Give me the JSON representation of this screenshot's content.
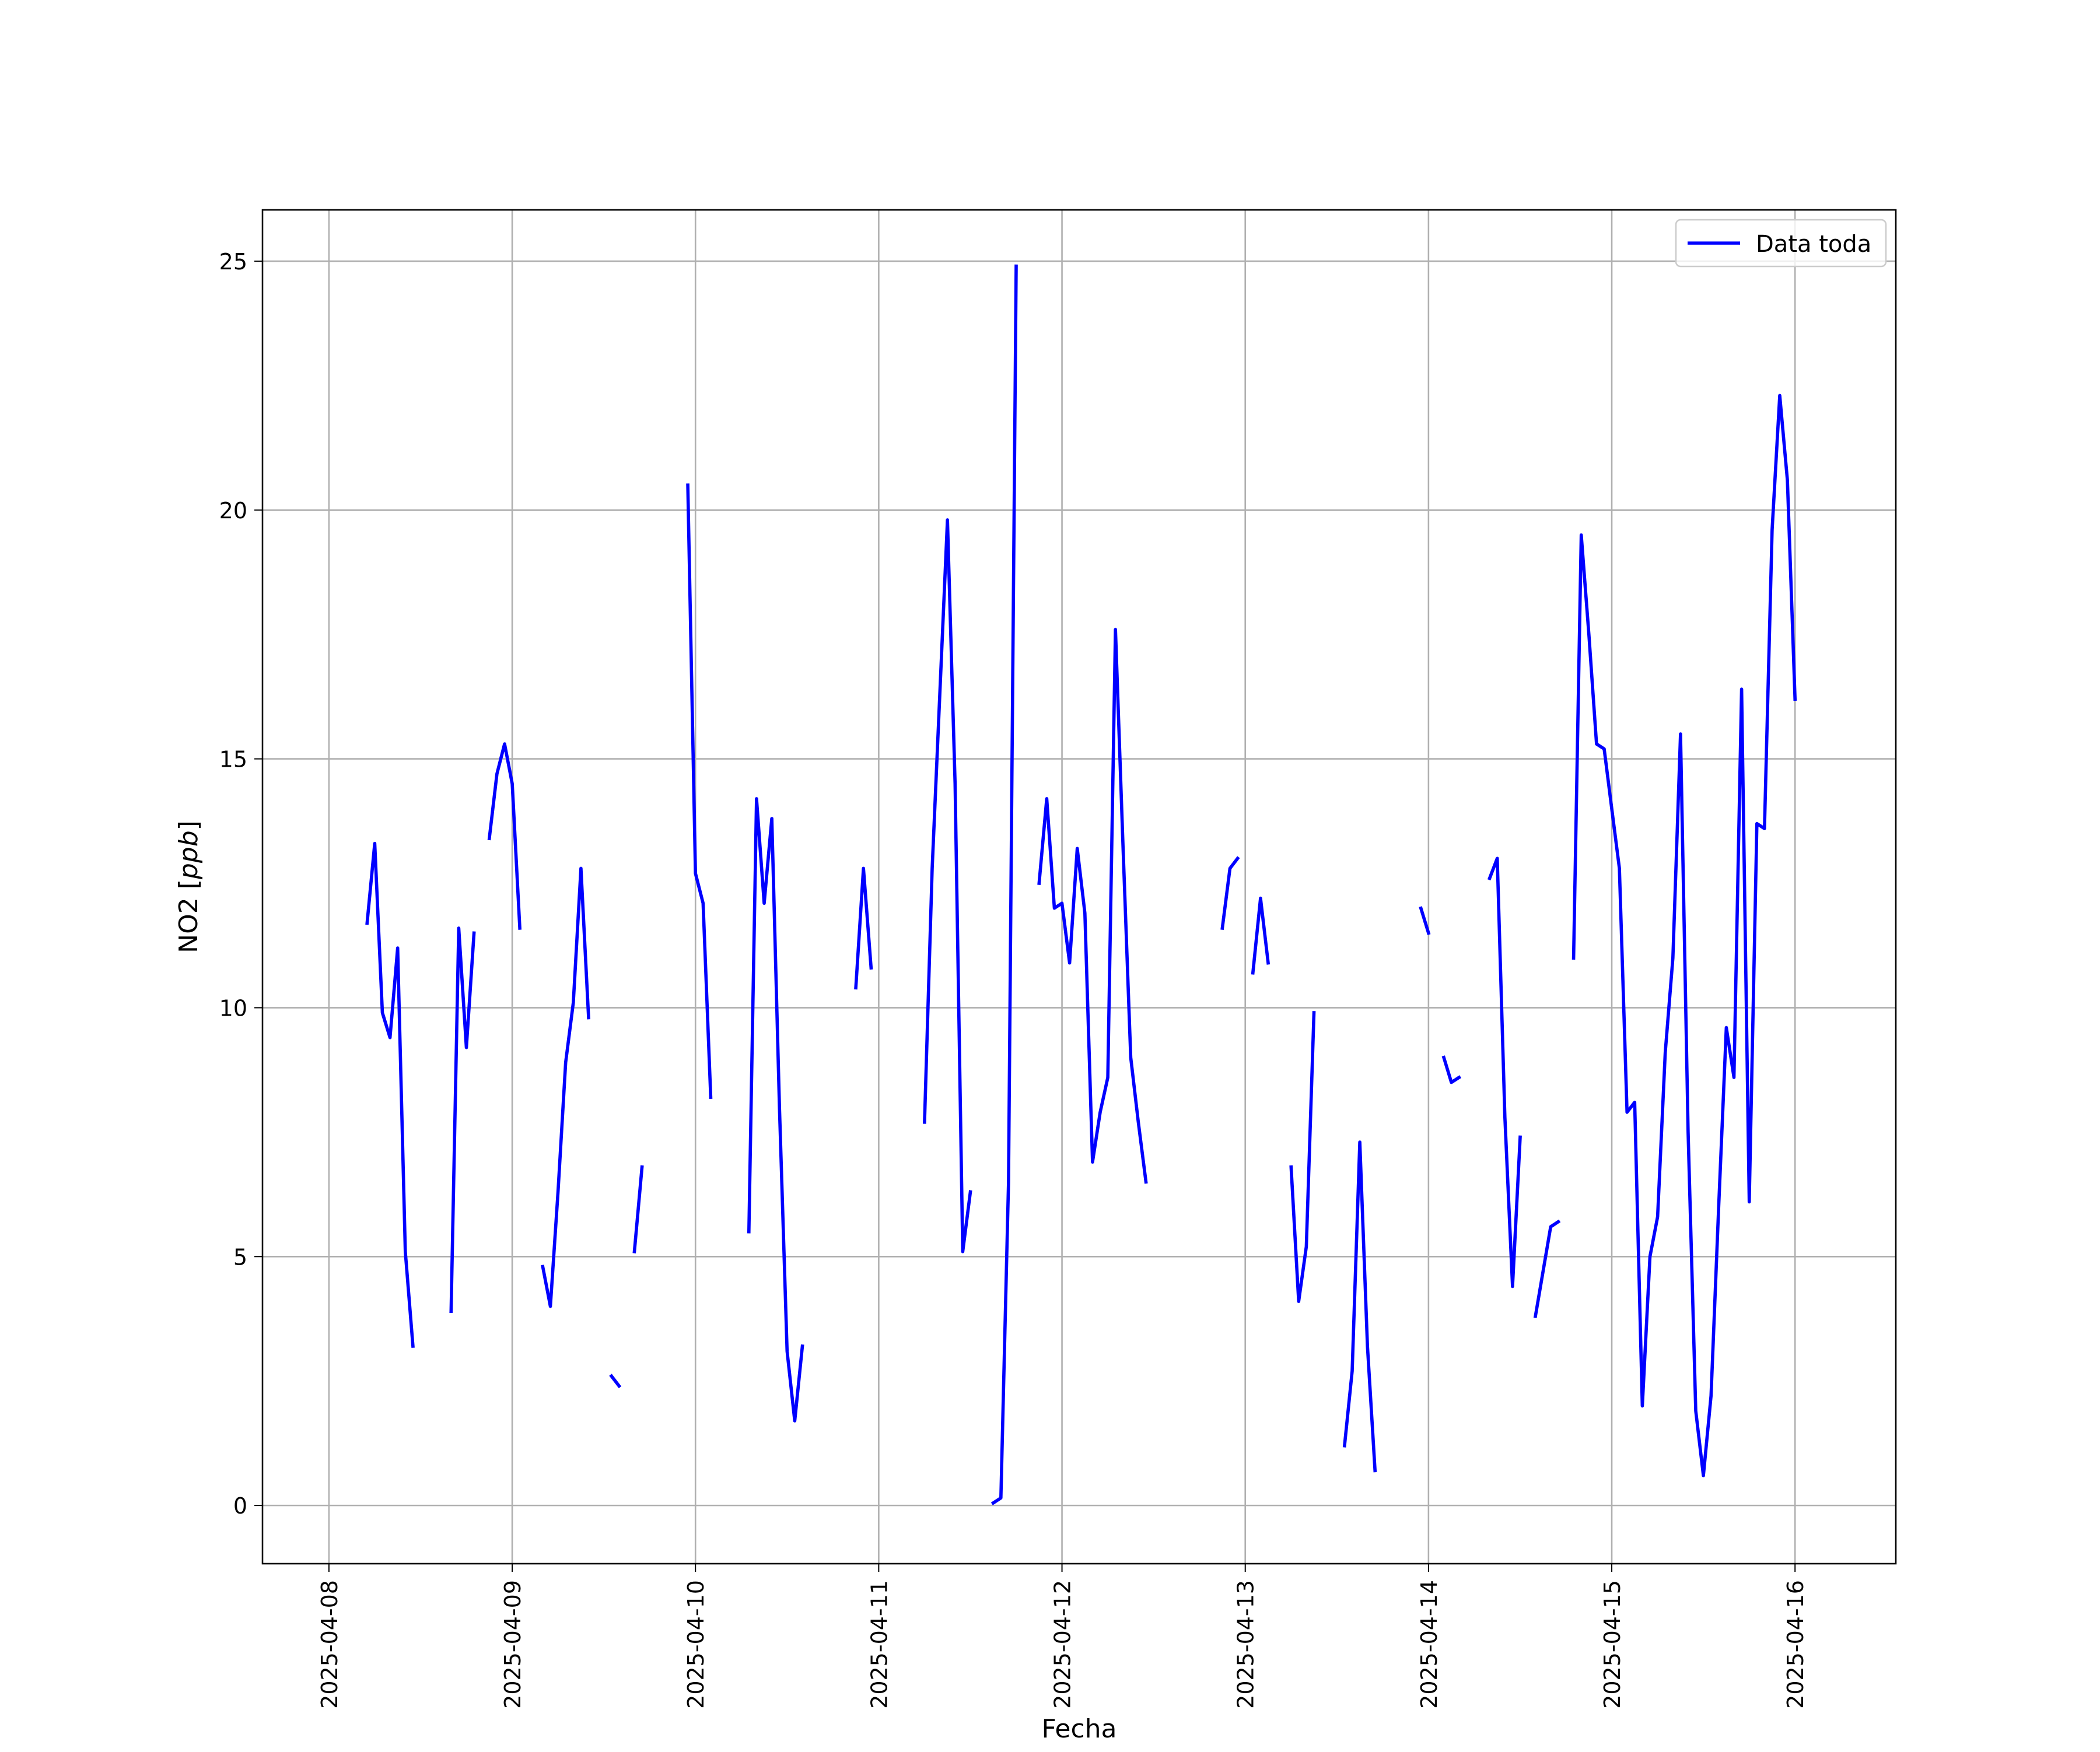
{
  "chart_data": {
    "type": "line",
    "title": "",
    "xlabel": "Fecha",
    "ylabel_text": "NO2 [",
    "ylabel_unit": "ppb",
    "ylabel_close": "]",
    "x_ticks": [
      "2025-04-08",
      "2025-04-09",
      "2025-04-10",
      "2025-04-11",
      "2025-04-12",
      "2025-04-13",
      "2025-04-14",
      "2025-04-15",
      "2025-04-16"
    ],
    "x_range": [
      "2025-04-07T15:18",
      "2025-04-16T13:12"
    ],
    "y_ticks": [
      "0",
      "5",
      "10",
      "15",
      "20",
      "25"
    ],
    "ylim": [
      -1.17,
      26.03
    ],
    "grid": true,
    "legend_position": "top-right",
    "series": [
      {
        "name": "Data toda",
        "color": "#0000ff",
        "segments": [
          [
            [
              "2025-04-08T05:00",
              11.7
            ],
            [
              "2025-04-08T06:00",
              13.3
            ],
            [
              "2025-04-08T07:00",
              9.9
            ],
            [
              "2025-04-08T08:00",
              9.4
            ],
            [
              "2025-04-08T09:00",
              11.2
            ],
            [
              "2025-04-08T10:00",
              5.1
            ],
            [
              "2025-04-08T11:00",
              3.2
            ]
          ],
          [
            [
              "2025-04-08T16:00",
              3.9
            ],
            [
              "2025-04-08T17:00",
              11.6
            ],
            [
              "2025-04-08T18:00",
              9.2
            ],
            [
              "2025-04-08T19:00",
              11.5
            ]
          ],
          [
            [
              "2025-04-08T21:00",
              13.4
            ],
            [
              "2025-04-08T22:00",
              14.7
            ],
            [
              "2025-04-08T23:00",
              15.3
            ],
            [
              "2025-04-09T00:00",
              14.5
            ],
            [
              "2025-04-09T01:00",
              11.6
            ]
          ],
          [
            [
              "2025-04-09T04:00",
              4.8
            ],
            [
              "2025-04-09T05:00",
              4.0
            ],
            [
              "2025-04-09T06:00",
              6.3
            ],
            [
              "2025-04-09T07:00",
              8.9
            ],
            [
              "2025-04-09T08:00",
              10.1
            ],
            [
              "2025-04-09T09:00",
              12.8
            ],
            [
              "2025-04-09T10:00",
              9.8
            ]
          ],
          [
            [
              "2025-04-09T13:00",
              2.6
            ],
            [
              "2025-04-09T14:00",
              2.4
            ]
          ],
          [
            [
              "2025-04-09T16:00",
              5.1
            ],
            [
              "2025-04-09T17:00",
              6.8
            ]
          ],
          [
            [
              "2025-04-09T23:00",
              20.5
            ],
            [
              "2025-04-10T00:00",
              12.7
            ],
            [
              "2025-04-10T01:00",
              12.1
            ],
            [
              "2025-04-10T02:00",
              8.2
            ]
          ],
          [
            [
              "2025-04-10T07:00",
              5.5
            ],
            [
              "2025-04-10T08:00",
              14.2
            ],
            [
              "2025-04-10T09:00",
              12.1
            ],
            [
              "2025-04-10T10:00",
              13.8
            ],
            [
              "2025-04-10T11:00",
              8.0
            ],
            [
              "2025-04-10T12:00",
              3.1
            ],
            [
              "2025-04-10T13:00",
              1.7
            ],
            [
              "2025-04-10T14:00",
              3.2
            ]
          ],
          [
            [
              "2025-04-10T21:00",
              10.4
            ],
            [
              "2025-04-10T22:00",
              12.8
            ],
            [
              "2025-04-10T23:00",
              10.8
            ]
          ],
          [
            [
              "2025-04-11T06:00",
              7.7
            ],
            [
              "2025-04-11T07:00",
              12.8
            ],
            [
              "2025-04-11T08:00",
              16.3
            ],
            [
              "2025-04-11T09:00",
              19.8
            ],
            [
              "2025-04-11T10:00",
              14.5
            ],
            [
              "2025-04-11T11:00",
              5.1
            ],
            [
              "2025-04-11T12:00",
              6.3
            ]
          ],
          [
            [
              "2025-04-11T15:00",
              0.05
            ],
            [
              "2025-04-11T16:00",
              0.15
            ],
            [
              "2025-04-11T17:00",
              6.5
            ],
            [
              "2025-04-11T18:00",
              24.9
            ]
          ],
          [
            [
              "2025-04-11T21:00",
              12.5
            ],
            [
              "2025-04-11T22:00",
              14.2
            ],
            [
              "2025-04-11T23:00",
              12.0
            ],
            [
              "2025-04-12T00:00",
              12.1
            ],
            [
              "2025-04-12T01:00",
              10.9
            ],
            [
              "2025-04-12T02:00",
              13.2
            ],
            [
              "2025-04-12T03:00",
              11.9
            ],
            [
              "2025-04-12T04:00",
              6.9
            ],
            [
              "2025-04-12T05:00",
              7.9
            ],
            [
              "2025-04-12T06:00",
              8.6
            ],
            [
              "2025-04-12T07:00",
              17.6
            ],
            [
              "2025-04-12T08:00",
              13.2
            ],
            [
              "2025-04-12T09:00",
              9.0
            ],
            [
              "2025-04-12T10:00",
              7.7
            ],
            [
              "2025-04-12T11:00",
              6.5
            ]
          ],
          [
            [
              "2025-04-12T21:00",
              11.6
            ],
            [
              "2025-04-12T22:00",
              12.8
            ],
            [
              "2025-04-12T23:00",
              13.0
            ]
          ],
          [
            [
              "2025-04-13T01:00",
              10.7
            ],
            [
              "2025-04-13T02:00",
              12.2
            ],
            [
              "2025-04-13T03:00",
              10.9
            ]
          ],
          [
            [
              "2025-04-13T06:00",
              6.8
            ],
            [
              "2025-04-13T07:00",
              4.1
            ],
            [
              "2025-04-13T08:00",
              5.2
            ],
            [
              "2025-04-13T09:00",
              9.9
            ]
          ],
          [
            [
              "2025-04-13T13:00",
              1.2
            ],
            [
              "2025-04-13T14:00",
              2.7
            ],
            [
              "2025-04-13T15:00",
              7.3
            ],
            [
              "2025-04-13T16:00",
              3.2
            ],
            [
              "2025-04-13T17:00",
              0.7
            ]
          ],
          [
            [
              "2025-04-13T23:00",
              12.0
            ],
            [
              "2025-04-14T00:00",
              11.5
            ]
          ],
          [
            [
              "2025-04-14T02:00",
              9.0
            ],
            [
              "2025-04-14T03:00",
              8.5
            ],
            [
              "2025-04-14T04:00",
              8.6
            ]
          ],
          [
            [
              "2025-04-14T08:00",
              12.6
            ],
            [
              "2025-04-14T09:00",
              13.0
            ],
            [
              "2025-04-14T10:00",
              7.8
            ],
            [
              "2025-04-14T11:00",
              4.4
            ],
            [
              "2025-04-14T12:00",
              7.4
            ]
          ],
          [
            [
              "2025-04-14T14:00",
              3.8
            ],
            [
              "2025-04-14T15:00",
              4.7
            ],
            [
              "2025-04-14T16:00",
              5.6
            ],
            [
              "2025-04-14T17:00",
              5.7
            ]
          ],
          [
            [
              "2025-04-14T19:00",
              11.0
            ],
            [
              "2025-04-14T20:00",
              19.5
            ],
            [
              "2025-04-14T21:00",
              17.5
            ],
            [
              "2025-04-14T22:00",
              15.3
            ],
            [
              "2025-04-14T23:00",
              15.2
            ],
            [
              "2025-04-15T00:00",
              14.0
            ],
            [
              "2025-04-15T01:00",
              12.8
            ],
            [
              "2025-04-15T02:00",
              7.9
            ],
            [
              "2025-04-15T03:00",
              8.1
            ],
            [
              "2025-04-15T04:00",
              2.0
            ],
            [
              "2025-04-15T05:00",
              5.0
            ],
            [
              "2025-04-15T06:00",
              5.8
            ],
            [
              "2025-04-15T07:00",
              9.1
            ],
            [
              "2025-04-15T08:00",
              11.0
            ],
            [
              "2025-04-15T09:00",
              15.5
            ],
            [
              "2025-04-15T10:00",
              7.5
            ],
            [
              "2025-04-15T11:00",
              1.9
            ],
            [
              "2025-04-15T12:00",
              0.6
            ],
            [
              "2025-04-15T13:00",
              2.2
            ],
            [
              "2025-04-15T14:00",
              6.0
            ],
            [
              "2025-04-15T15:00",
              9.6
            ],
            [
              "2025-04-15T16:00",
              8.6
            ],
            [
              "2025-04-15T17:00",
              16.4
            ],
            [
              "2025-04-15T18:00",
              6.1
            ],
            [
              "2025-04-15T19:00",
              13.7
            ],
            [
              "2025-04-15T20:00",
              13.6
            ],
            [
              "2025-04-15T21:00",
              19.6
            ],
            [
              "2025-04-15T22:00",
              22.3
            ],
            [
              "2025-04-15T23:00",
              20.6
            ],
            [
              "2025-04-16T00:00",
              16.2
            ]
          ]
        ]
      }
    ]
  }
}
